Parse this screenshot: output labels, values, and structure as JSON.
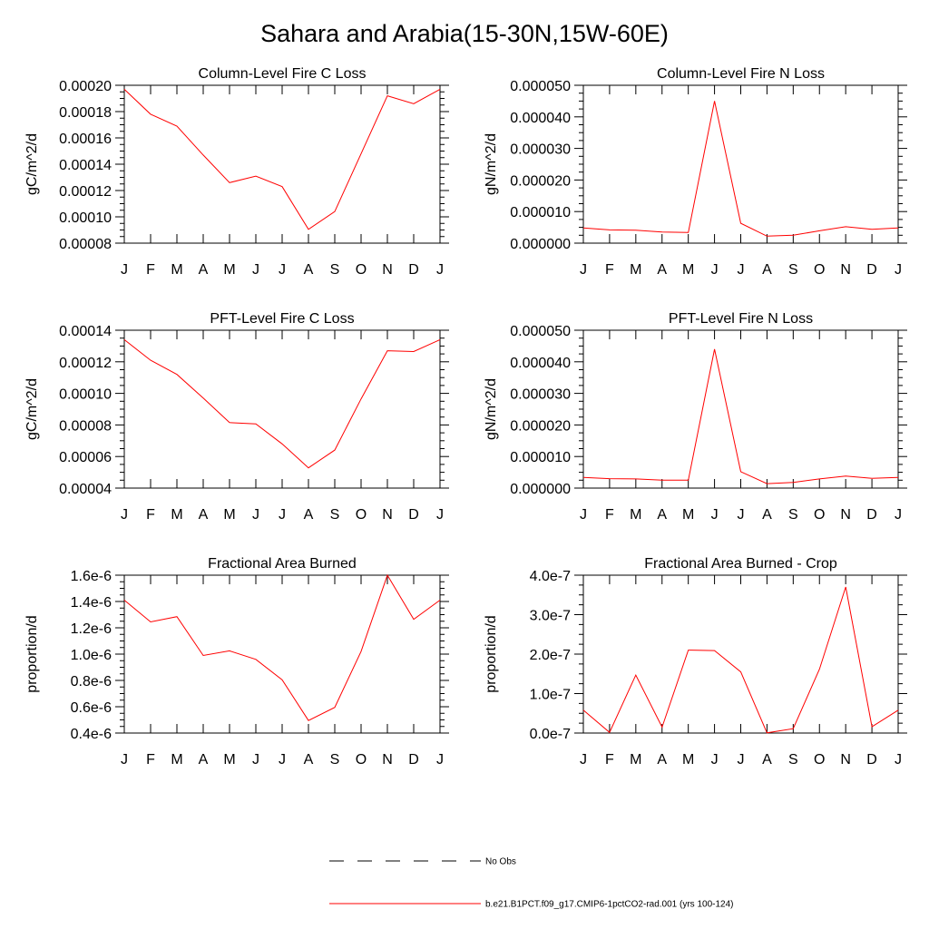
{
  "title": "Sahara and Arabia(15-30N,15W-60E)",
  "colors": {
    "model_line": "#ff0000",
    "axis": "#000000",
    "obs_line": "#000000"
  },
  "chart_data": [
    {
      "type": "line",
      "title": "Column-Level Fire C Loss",
      "ylabel": "gC/m^2/d",
      "categories": [
        "J",
        "F",
        "M",
        "A",
        "M",
        "J",
        "J",
        "A",
        "S",
        "O",
        "N",
        "D",
        "J"
      ],
      "ylim": [
        8e-05,
        0.0002
      ],
      "yticks": [
        8e-05,
        0.0001,
        0.00012,
        0.00014,
        0.00016,
        0.00018,
        0.0002
      ],
      "ytick_labels": [
        "0.00008",
        "0.00010",
        "0.00012",
        "0.00014",
        "0.00016",
        "0.00018",
        "0.00020"
      ],
      "series": [
        {
          "name": "b.e21.B1PCT.f09_g17.CMIP6-1pctCO2-rad.001 (yrs 100-124)",
          "values": [
            0.000197,
            0.000178,
            0.000169,
            0.000147,
            0.000126,
            0.000131,
            0.000123,
            9.05e-05,
            0.000104,
            0.000148,
            0.000192,
            0.000186,
            0.000197
          ]
        }
      ]
    },
    {
      "type": "line",
      "title": "Column-Level Fire N Loss",
      "ylabel": "gN/m^2/d",
      "categories": [
        "J",
        "F",
        "M",
        "A",
        "M",
        "J",
        "J",
        "A",
        "S",
        "O",
        "N",
        "D",
        "J"
      ],
      "ylim": [
        0,
        5e-05
      ],
      "yticks": [
        0,
        1e-05,
        2e-05,
        3e-05,
        4e-05,
        5e-05
      ],
      "ytick_labels": [
        "0.000000",
        "0.000010",
        "0.000020",
        "0.000030",
        "0.000040",
        "0.000050"
      ],
      "series": [
        {
          "name": "b.e21.B1PCT.f09_g17.CMIP6-1pctCO2-rad.001 (yrs 100-124)",
          "values": [
            4.8e-06,
            4.2e-06,
            4.1e-06,
            3.5e-06,
            3.4e-06,
            4.5e-05,
            6.3e-06,
            2.2e-06,
            2.5e-06,
            3.9e-06,
            5.2e-06,
            4.4e-06,
            4.8e-06
          ]
        }
      ]
    },
    {
      "type": "line",
      "title": "PFT-Level Fire C Loss",
      "ylabel": "gC/m^2/d",
      "categories": [
        "J",
        "F",
        "M",
        "A",
        "M",
        "J",
        "J",
        "A",
        "S",
        "O",
        "N",
        "D",
        "J"
      ],
      "ylim": [
        4e-05,
        0.00014
      ],
      "yticks": [
        4e-05,
        6e-05,
        8e-05,
        0.0001,
        0.00012,
        0.00014
      ],
      "ytick_labels": [
        "0.00004",
        "0.00006",
        "0.00008",
        "0.00010",
        "0.00012",
        "0.00014"
      ],
      "series": [
        {
          "name": "b.e21.B1PCT.f09_g17.CMIP6-1pctCO2-rad.001 (yrs 100-124)",
          "values": [
            0.000134,
            0.000121,
            0.000112,
            9.7e-05,
            8.15e-05,
            8.07e-05,
            6.8e-05,
            5.28e-05,
            6.41e-05,
            9.65e-05,
            0.000127,
            0.0001265,
            0.000134
          ]
        }
      ]
    },
    {
      "type": "line",
      "title": "PFT-Level Fire N Loss",
      "ylabel": "gN/m^2/d",
      "categories": [
        "J",
        "F",
        "M",
        "A",
        "M",
        "J",
        "J",
        "A",
        "S",
        "O",
        "N",
        "D",
        "J"
      ],
      "ylim": [
        0,
        5e-05
      ],
      "yticks": [
        0,
        1e-05,
        2e-05,
        3e-05,
        4e-05,
        5e-05
      ],
      "ytick_labels": [
        "0.000000",
        "0.000010",
        "0.000020",
        "0.000030",
        "0.000040",
        "0.000050"
      ],
      "series": [
        {
          "name": "b.e21.B1PCT.f09_g17.CMIP6-1pctCO2-rad.001 (yrs 100-124)",
          "values": [
            3.4e-06,
            3e-06,
            2.9e-06,
            2.5e-06,
            2.5e-06,
            4.4e-05,
            5.2e-06,
            1.4e-06,
            1.8e-06,
            2.9e-06,
            3.8e-06,
            3.1e-06,
            3.4e-06
          ]
        }
      ]
    },
    {
      "type": "line",
      "title": "Fractional Area Burned",
      "ylabel": "proportion/d",
      "categories": [
        "J",
        "F",
        "M",
        "A",
        "M",
        "J",
        "J",
        "A",
        "S",
        "O",
        "N",
        "D",
        "J"
      ],
      "ylim": [
        4e-07,
        1.6e-06
      ],
      "yticks": [
        4e-07,
        6e-07,
        8e-07,
        1e-06,
        1.2e-06,
        1.4e-06,
        1.6e-06
      ],
      "ytick_labels": [
        "0.4e-6",
        "0.6e-6",
        "0.8e-6",
        "1.0e-6",
        "1.2e-6",
        "1.4e-6",
        "1.6e-6"
      ],
      "series": [
        {
          "name": "b.e21.B1PCT.f09_g17.CMIP6-1pctCO2-rad.001 (yrs 100-124)",
          "values": [
            1.41e-06,
            1.245e-06,
            1.285e-06,
            9.9e-07,
            1.025e-06,
            9.6e-07,
            8.05e-07,
            4.95e-07,
            5.95e-07,
            1.02e-06,
            1.6e-06,
            1.265e-06,
            1.41e-06
          ]
        }
      ]
    },
    {
      "type": "line",
      "title": "Fractional Area Burned - Crop",
      "ylabel": "proportion/d",
      "categories": [
        "J",
        "F",
        "M",
        "A",
        "M",
        "J",
        "J",
        "A",
        "S",
        "O",
        "N",
        "D",
        "J"
      ],
      "ylim": [
        0,
        4e-07
      ],
      "yticks": [
        0,
        1e-07,
        2e-07,
        3e-07,
        4e-07
      ],
      "ytick_labels": [
        "0.0e-7",
        "1.0e-7",
        "2.0e-7",
        "3.0e-7",
        "4.0e-7"
      ],
      "series": [
        {
          "name": "b.e21.B1PCT.f09_g17.CMIP6-1pctCO2-rad.001 (yrs 100-124)",
          "values": [
            5.8e-08,
            1.5e-09,
            1.47e-07,
            1.5e-08,
            2.1e-07,
            2.09e-07,
            1.55e-07,
            5e-10,
            1.1e-08,
            1.62e-07,
            3.7e-07,
            1.6e-08,
            5.8e-08
          ]
        }
      ]
    }
  ],
  "legend": {
    "items": [
      {
        "label": "No Obs",
        "style": "dashed"
      },
      {
        "label": "b.e21.B1PCT.f09_g17.CMIP6-1pctCO2-rad.001 (yrs 100-124)",
        "style": "solid"
      }
    ]
  }
}
